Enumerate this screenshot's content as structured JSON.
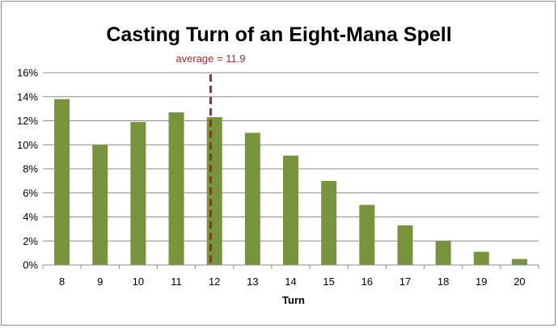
{
  "chart_data": {
    "type": "bar",
    "title": "Casting Turn of an Eight-Mana Spell",
    "xlabel": "Turn",
    "ylabel": "",
    "categories": [
      "8",
      "9",
      "10",
      "11",
      "12",
      "13",
      "14",
      "15",
      "16",
      "17",
      "18",
      "19",
      "20"
    ],
    "values": [
      13.8,
      10.0,
      11.9,
      12.7,
      12.3,
      11.0,
      9.1,
      7.0,
      5.0,
      3.3,
      2.0,
      1.1,
      0.5
    ],
    "ylim": [
      0,
      16
    ],
    "yticks": [
      0,
      2,
      4,
      6,
      8,
      10,
      12,
      14,
      16
    ],
    "ytick_labels": [
      "0%",
      "2%",
      "4%",
      "6%",
      "8%",
      "10%",
      "12%",
      "14%",
      "16%"
    ],
    "y_unit": "percent",
    "grid": "horizontal",
    "legend": "none",
    "bar_color": "#77933c",
    "annotation": {
      "text": "average = 11.9",
      "x_value": 11.9,
      "style": "dashed vertical line",
      "color": "#9b2d30"
    }
  }
}
